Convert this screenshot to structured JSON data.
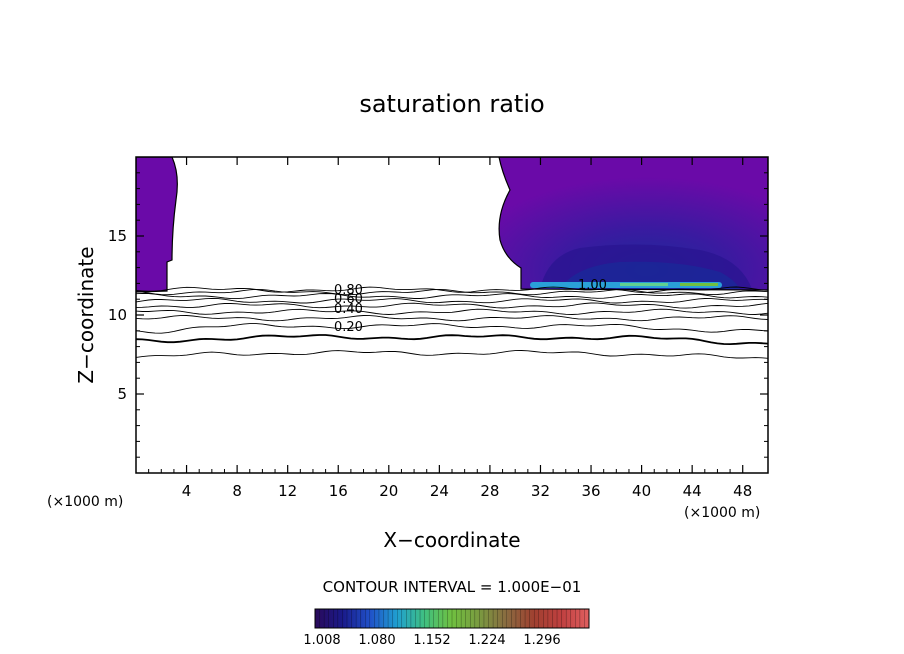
{
  "chart_data": {
    "type": "contour",
    "title": "saturation ratio",
    "xlabel": "X−coordinate",
    "ylabel": "Z−coordinate",
    "x_unit_left": "(×1000 m)",
    "x_unit_right": "(×1000 m)",
    "xlim": [
      0,
      50
    ],
    "ylim": [
      0,
      20
    ],
    "x_ticks": [
      4,
      8,
      12,
      16,
      20,
      24,
      28,
      32,
      36,
      40,
      44,
      48
    ],
    "y_ticks": [
      5,
      10,
      15
    ],
    "x_tick_labels": [
      "4",
      "8",
      "12",
      "16",
      "20",
      "24",
      "28",
      "32",
      "36",
      "40",
      "44",
      "48"
    ],
    "y_tick_labels": [
      "5",
      "10",
      "15"
    ],
    "contour_interval_text": "CONTOUR INTERVAL = 1.000E−01",
    "contour_levels": [
      0.1,
      0.2,
      0.3,
      0.4,
      0.5,
      0.6,
      0.7,
      0.8,
      0.9,
      1.0
    ],
    "contour_labels": [
      {
        "text": "0.80",
        "x": 17.3,
        "z": 11.4
      },
      {
        "text": "0.60",
        "x": 17.3,
        "z": 10.9
      },
      {
        "text": "0.40",
        "x": 17.3,
        "z": 10.2
      },
      {
        "text": "0.20",
        "x": 17.3,
        "z": 9.1
      },
      {
        "text": "1.00",
        "x": 36.2,
        "z": 11.9
      }
    ],
    "colorbar": {
      "ticks": [
        "1.008",
        "1.080",
        "1.152",
        "1.224",
        "1.296"
      ],
      "colors": [
        "#2a0a5a",
        "#1a1a8a",
        "#2050c8",
        "#20a0d0",
        "#40c080",
        "#70c040",
        "#7a9a40",
        "#8a6a40",
        "#a04030",
        "#c04040",
        "#e06060"
      ]
    },
    "shaded_regions": [
      {
        "name": "left supersaturated column",
        "x_range": [
          0,
          2.7
        ],
        "z_range": [
          11.4,
          20
        ]
      },
      {
        "name": "right supersaturated region",
        "x_range": [
          29,
          50
        ],
        "z_range": [
          11.4,
          20
        ]
      }
    ],
    "grid": false
  }
}
